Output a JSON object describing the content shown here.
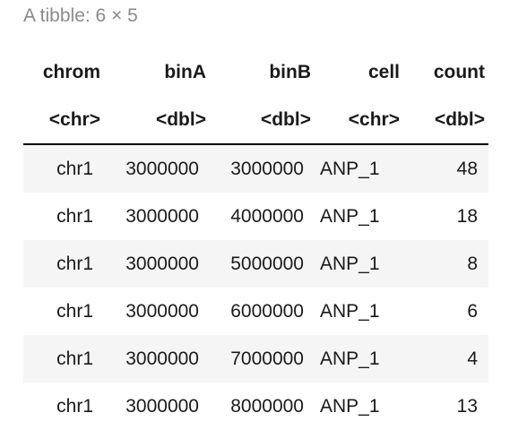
{
  "caption": "A tibble: 6 × 5",
  "columns": [
    {
      "name": "chrom",
      "type": "<chr>"
    },
    {
      "name": "binA",
      "type": "<dbl>"
    },
    {
      "name": "binB",
      "type": "<dbl>"
    },
    {
      "name": "cell",
      "type": "<chr>"
    },
    {
      "name": "count",
      "type": "<dbl>"
    }
  ],
  "rows": [
    [
      "chr1",
      "3000000",
      "3000000",
      "ANP_1",
      "48"
    ],
    [
      "chr1",
      "3000000",
      "4000000",
      "ANP_1",
      "18"
    ],
    [
      "chr1",
      "3000000",
      "5000000",
      "ANP_1",
      "8"
    ],
    [
      "chr1",
      "3000000",
      "6000000",
      "ANP_1",
      "6"
    ],
    [
      "chr1",
      "3000000",
      "7000000",
      "ANP_1",
      "4"
    ],
    [
      "chr1",
      "3000000",
      "8000000",
      "ANP_1",
      "13"
    ]
  ]
}
